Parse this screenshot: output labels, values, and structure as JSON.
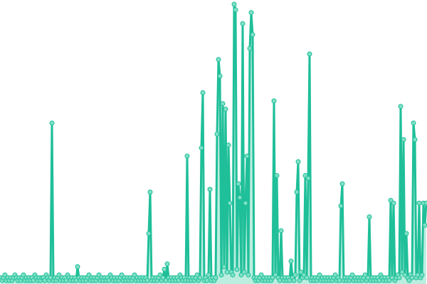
{
  "chart_data": {
    "type": "line",
    "title": "",
    "xlabel": "",
    "ylabel": "",
    "ylim": [
      0,
      100
    ],
    "grid": false,
    "legend": "none",
    "colors": {
      "line": "#1fbf99",
      "fill": "#8fe3cc",
      "marker_fill": "#7fe0c6",
      "marker_stroke": "#1fbf99"
    },
    "series": [
      {
        "values": [
          1,
          0,
          1,
          2,
          0,
          1,
          0,
          1,
          0,
          1,
          2,
          1,
          0,
          1,
          0,
          1,
          2,
          0,
          1,
          0,
          1,
          0,
          1,
          0,
          2,
          1,
          0,
          1,
          0,
          1,
          1,
          0,
          2,
          1,
          0,
          1,
          57,
          0,
          1,
          0,
          1,
          2,
          0,
          1,
          0,
          1,
          0,
          2,
          1,
          0,
          1,
          0,
          1,
          0,
          5,
          1,
          0,
          1,
          0,
          1,
          0,
          1,
          2,
          0,
          1,
          0,
          1,
          0,
          1,
          2,
          0,
          1,
          0,
          1,
          0,
          1,
          0,
          2,
          1,
          0,
          1,
          0,
          1,
          0,
          1,
          2,
          0,
          1,
          0,
          1,
          0,
          1,
          0,
          1,
          2,
          0,
          1,
          0,
          1,
          0,
          1,
          0,
          1,
          0,
          17,
          32,
          0,
          1,
          0,
          1,
          0,
          1,
          2,
          0,
          1,
          4,
          0,
          6,
          1,
          0,
          1,
          0,
          1,
          0,
          1,
          0,
          2,
          1,
          0,
          1,
          0,
          45,
          0,
          1,
          0,
          1,
          0,
          1,
          2,
          0,
          1,
          48,
          68,
          0,
          1,
          0,
          2,
          33,
          0,
          1,
          0,
          1,
          53,
          80,
          74,
          2,
          64,
          5,
          62,
          3,
          49,
          28,
          3,
          2,
          100,
          98,
          4,
          35,
          30,
          2,
          93,
          3,
          28,
          45,
          2,
          84,
          97,
          89,
          1,
          0,
          1,
          0,
          1,
          2,
          0,
          1,
          0,
          1,
          0,
          1,
          0,
          1,
          65,
          2,
          38,
          1,
          0,
          18,
          1,
          0,
          1,
          0,
          1,
          0,
          7,
          1,
          0,
          2,
          32,
          43,
          0,
          3,
          1,
          2,
          38,
          1,
          37,
          82,
          0,
          1,
          0,
          1,
          0,
          1,
          2,
          0,
          1,
          0,
          1,
          0,
          1,
          0,
          1,
          0,
          1,
          2,
          0,
          1,
          0,
          27,
          35,
          0,
          1,
          0,
          1,
          0,
          1,
          2,
          0,
          1,
          0,
          1,
          0,
          1,
          0,
          1,
          2,
          0,
          1,
          23,
          0,
          1,
          0,
          1,
          0,
          1,
          0,
          2,
          1,
          0,
          1,
          0,
          1,
          0,
          29,
          1,
          28,
          0,
          1,
          2,
          1,
          63,
          3,
          51,
          2,
          17,
          1,
          0,
          2,
          1,
          57,
          51,
          1,
          2,
          28,
          1,
          2,
          28,
          20,
          28
        ]
      }
    ]
  }
}
